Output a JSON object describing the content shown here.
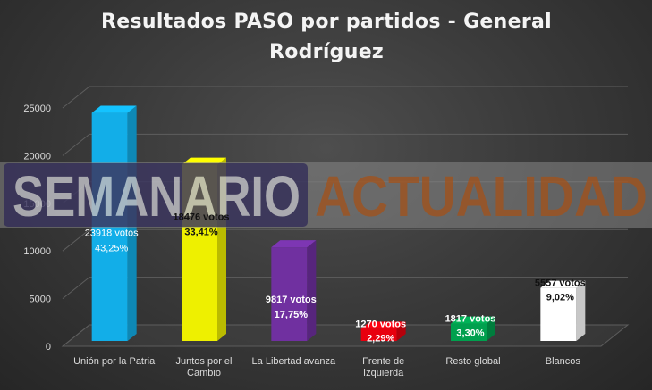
{
  "chart_data": {
    "type": "bar",
    "title": "Resultados PASO por partidos - General Rodríguez",
    "categories": [
      "Unión por la Patria",
      "Juntos por el Cambio",
      "La Libertad avanza",
      "Frente de Izquierda",
      "Resto global",
      "Blancos"
    ],
    "category_lines": [
      [
        "Unión por la Patria"
      ],
      [
        "Juntos por el",
        "Cambio"
      ],
      [
        "La Libertad avanza"
      ],
      [
        "Frente de",
        "Izquierda"
      ],
      [
        "Resto global"
      ],
      [
        "Blancos"
      ]
    ],
    "values": [
      23918,
      18476,
      9817,
      1270,
      1817,
      5557
    ],
    "value_labels": [
      "23918 votos",
      "18476 votos",
      "9817 votos",
      "1270 votos",
      "1817 votos",
      "5557 votos"
    ],
    "percent_labels": [
      "43,25%",
      "33,41%",
      "17,75%",
      "2,29%",
      "3,30%",
      "9,02%"
    ],
    "colors": [
      "#12aee8",
      "#eef000",
      "#7030a0",
      "#e8000e",
      "#00a04e",
      "#ffffff"
    ],
    "ylim": [
      0,
      25000
    ],
    "yticks": [
      0,
      5000,
      10000,
      15000,
      20000,
      25000
    ],
    "grid": true,
    "legend": "none"
  },
  "watermark": {
    "text": "Semanario Actualidad",
    "part1": "SEMANARIO",
    "part2": "ACTUALIDAD"
  }
}
